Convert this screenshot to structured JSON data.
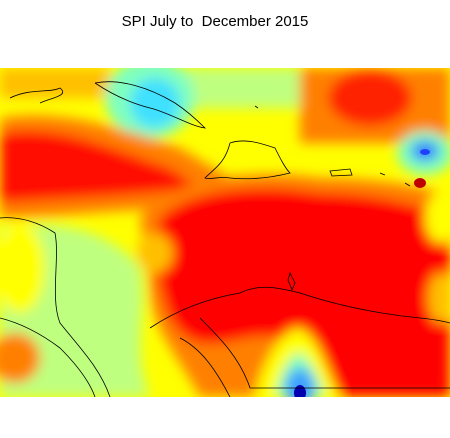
{
  "header": {
    "title": "SPI July to  December 2015"
  }
}
